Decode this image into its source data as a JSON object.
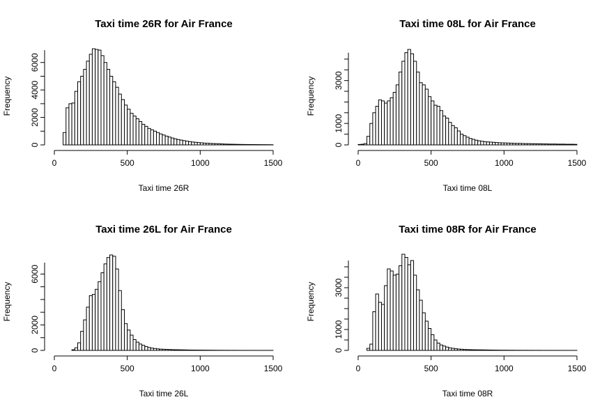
{
  "colors": {
    "bar_fill": "#ffffff",
    "bar_stroke": "#000000",
    "background": "#ffffff"
  },
  "chart_data": [
    {
      "type": "bar",
      "title": "Taxi time 26R for Air France",
      "xlabel": "Taxi time 26R",
      "ylabel": "Frequency",
      "xlim": [
        0,
        1500
      ],
      "ylim": [
        0,
        7000
      ],
      "xticks": [
        0,
        500,
        1000,
        1500
      ],
      "yticks": [
        0,
        2000,
        4000,
        6000
      ],
      "bin_width": 20,
      "bin_start": 0,
      "values": [
        0,
        0,
        0,
        900,
        2700,
        3000,
        3050,
        3900,
        4600,
        5000,
        5500,
        6100,
        6600,
        7000,
        6950,
        6900,
        6500,
        6000,
        5500,
        5000,
        4600,
        4200,
        3700,
        3300,
        2900,
        2600,
        2300,
        2100,
        1900,
        1700,
        1500,
        1350,
        1200,
        1100,
        1000,
        900,
        800,
        720,
        640,
        570,
        500,
        440,
        390,
        350,
        310,
        270,
        240,
        210,
        190,
        170,
        150,
        130,
        120,
        110,
        100,
        90,
        80,
        70,
        60,
        55,
        50,
        45,
        40,
        35,
        32,
        30,
        28,
        26,
        24,
        22,
        20,
        18,
        16,
        14,
        12
      ]
    },
    {
      "type": "bar",
      "title": "Taxi time 08L for Air France",
      "xlabel": "Taxi time 08L",
      "ylabel": "Frequency",
      "xlim": [
        0,
        1500
      ],
      "ylim": [
        0,
        4500
      ],
      "xticks": [
        0,
        500,
        1000,
        1500
      ],
      "yticks": [
        0,
        1000,
        3000
      ],
      "bin_width": 20,
      "bin_start": 0,
      "values": [
        20,
        30,
        60,
        400,
        1000,
        1500,
        1800,
        2100,
        2050,
        1950,
        2050,
        2200,
        2450,
        2800,
        3400,
        3900,
        4300,
        4450,
        4250,
        3900,
        3400,
        2900,
        2800,
        2600,
        2250,
        2050,
        1850,
        1800,
        1600,
        1350,
        1250,
        1050,
        900,
        800,
        650,
        500,
        430,
        360,
        300,
        260,
        220,
        190,
        170,
        150,
        140,
        130,
        120,
        110,
        100,
        95,
        90,
        85,
        80,
        75,
        70,
        70,
        65,
        60,
        60,
        55,
        55,
        50,
        50,
        45,
        45,
        40,
        40,
        40,
        35,
        35,
        35,
        30,
        30,
        30,
        25
      ]
    },
    {
      "type": "bar",
      "title": "Taxi time 26L for Air France",
      "xlabel": "Taxi time 26L",
      "ylabel": "Frequency",
      "xlim": [
        0,
        1500
      ],
      "ylim": [
        0,
        8000
      ],
      "xticks": [
        0,
        500,
        1000,
        1500
      ],
      "yticks": [
        0,
        2000,
        6000
      ],
      "bin_width": 20,
      "bin_start": 0,
      "values": [
        0,
        0,
        0,
        0,
        0,
        0,
        50,
        200,
        600,
        1500,
        2400,
        3400,
        4300,
        4400,
        4800,
        5400,
        6100,
        6800,
        7300,
        7500,
        7400,
        6400,
        4700,
        3200,
        2100,
        1600,
        1200,
        850,
        650,
        500,
        400,
        300,
        230,
        180,
        150,
        120,
        100,
        90,
        80,
        70,
        60,
        55,
        50,
        45,
        40,
        35,
        30,
        28,
        26,
        24,
        22,
        20,
        18,
        16,
        14,
        12,
        10,
        10,
        8,
        8,
        6,
        6,
        5,
        5,
        4,
        4,
        3,
        3,
        3,
        2,
        2,
        2,
        2,
        2,
        2
      ]
    },
    {
      "type": "bar",
      "title": "Taxi time 08R for Air France",
      "xlabel": "Taxi time 08R",
      "ylabel": "Frequency",
      "xlim": [
        0,
        1500
      ],
      "ylim": [
        0,
        4500
      ],
      "xticks": [
        0,
        500,
        1000,
        1500
      ],
      "yticks": [
        0,
        1000,
        3000
      ],
      "bin_width": 20,
      "bin_start": 0,
      "values": [
        0,
        0,
        0,
        100,
        300,
        1850,
        2700,
        2300,
        2200,
        3100,
        3900,
        3800,
        3600,
        3650,
        4050,
        4600,
        4450,
        4100,
        4300,
        3600,
        2900,
        2400,
        1800,
        1400,
        1050,
        750,
        500,
        350,
        260,
        210,
        160,
        120,
        100,
        80,
        65,
        55,
        45,
        40,
        35,
        30,
        28,
        26,
        24,
        22,
        20,
        18,
        16,
        14,
        12,
        10,
        10,
        9,
        8,
        7,
        6,
        6,
        5,
        5,
        4,
        4,
        3,
        3,
        3,
        2,
        2,
        2,
        2,
        2,
        2,
        2,
        1,
        1,
        1,
        1,
        1
      ]
    }
  ]
}
